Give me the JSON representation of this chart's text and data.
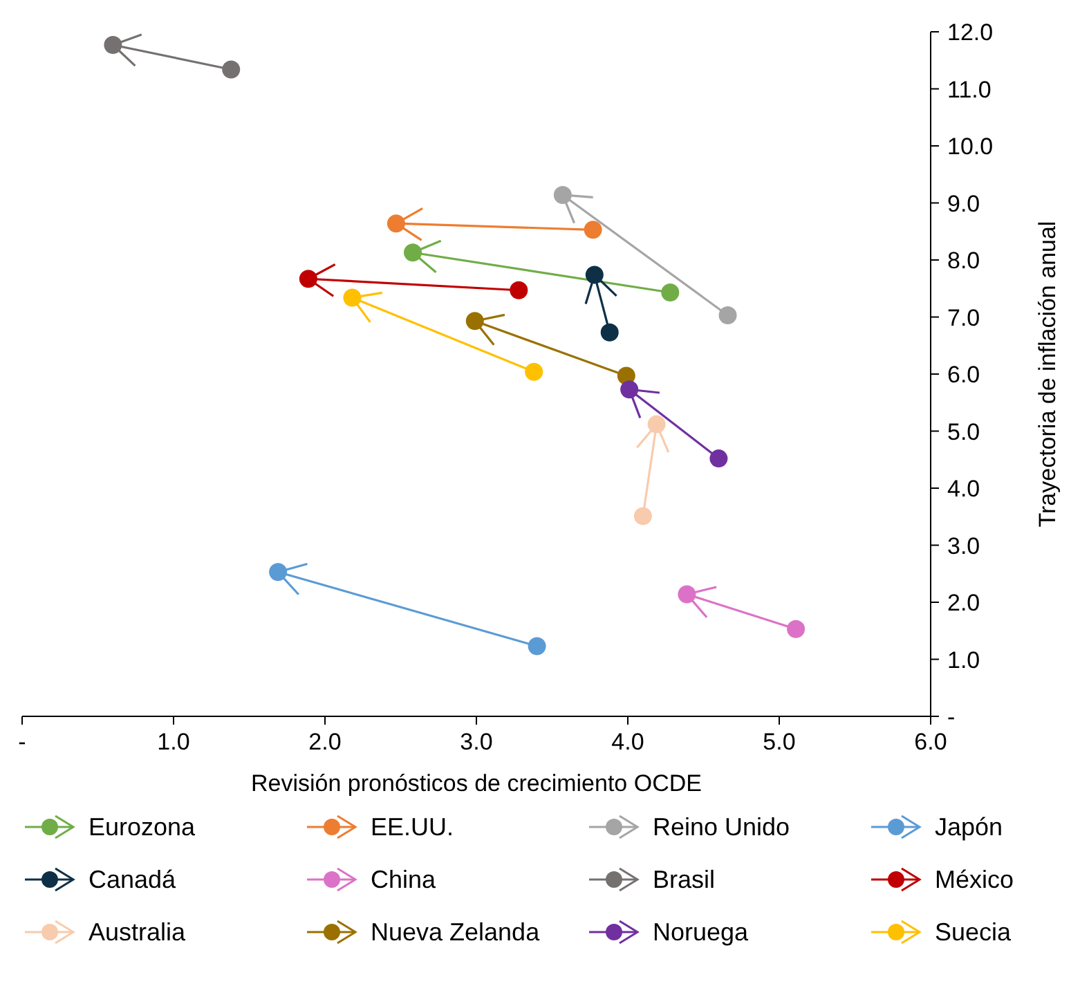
{
  "chart_data": {
    "type": "line",
    "xlabel": "Revisión  pronósticos de crecimiento OCDE",
    "ylabel": "Trayectoria de inflación anual",
    "xlim": [
      0,
      6
    ],
    "ylim": [
      0,
      12
    ],
    "xticks": [
      {
        "value": 0,
        "label": "-"
      },
      {
        "value": 1,
        "label": "1.0"
      },
      {
        "value": 2,
        "label": "2.0"
      },
      {
        "value": 3,
        "label": "3.0"
      },
      {
        "value": 4,
        "label": "4.0"
      },
      {
        "value": 5,
        "label": "5.0"
      },
      {
        "value": 6,
        "label": "6.0"
      }
    ],
    "yticks": [
      {
        "value": 0,
        "label": "-"
      },
      {
        "value": 1,
        "label": "1.0"
      },
      {
        "value": 2,
        "label": "2.0"
      },
      {
        "value": 3,
        "label": "3.0"
      },
      {
        "value": 4,
        "label": "4.0"
      },
      {
        "value": 5,
        "label": "5.0"
      },
      {
        "value": 6,
        "label": "6.0"
      },
      {
        "value": 7,
        "label": "7.0"
      },
      {
        "value": 8,
        "label": "8.0"
      },
      {
        "value": 9,
        "label": "9.0"
      },
      {
        "value": 10,
        "label": "10.0"
      },
      {
        "value": 11,
        "label": "11.0"
      },
      {
        "value": 12,
        "label": "12.0"
      }
    ],
    "grid": false,
    "legend": "bottom",
    "marker": "circle",
    "line_style": "solid",
    "series": [
      {
        "name": "Eurozona",
        "color": "#70ad47",
        "x": [
          4.28,
          2.58
        ],
        "values": [
          7.43,
          8.13
        ]
      },
      {
        "name": "EE.UU.",
        "color": "#ed7d31",
        "x": [
          3.77,
          2.47
        ],
        "values": [
          8.53,
          8.64
        ]
      },
      {
        "name": "Reino Unido",
        "color": "#a5a5a5",
        "x": [
          4.66,
          3.57
        ],
        "values": [
          7.03,
          9.14
        ]
      },
      {
        "name": "Japón",
        "color": "#5b9bd5",
        "x": [
          3.4,
          1.69
        ],
        "values": [
          1.23,
          2.53
        ]
      },
      {
        "name": "Canadá",
        "color": "#0e3047",
        "x": [
          3.88,
          3.78
        ],
        "values": [
          6.73,
          7.74
        ]
      },
      {
        "name": "China",
        "color": "#dc72c8",
        "x": [
          5.11,
          4.39
        ],
        "values": [
          1.53,
          2.14
        ]
      },
      {
        "name": "Brasil",
        "color": "#767171",
        "x": [
          1.38,
          0.6
        ],
        "values": [
          11.34,
          11.77
        ]
      },
      {
        "name": "México",
        "color": "#c00000",
        "x": [
          3.28,
          1.89
        ],
        "values": [
          7.47,
          7.67
        ]
      },
      {
        "name": "Australia",
        "color": "#f8cbad",
        "x": [
          4.1,
          4.19
        ],
        "values": [
          3.51,
          5.12
        ]
      },
      {
        "name": "Nueva Zelanda",
        "color": "#9a7100",
        "x": [
          3.99,
          2.99
        ],
        "values": [
          5.97,
          6.93
        ]
      },
      {
        "name": "Noruega",
        "color": "#7030a0",
        "x": [
          4.6,
          4.01
        ],
        "values": [
          4.52,
          5.73
        ]
      },
      {
        "name": "Suecia",
        "color": "#ffc000",
        "x": [
          3.38,
          2.18
        ],
        "values": [
          6.04,
          7.34
        ]
      }
    ]
  }
}
